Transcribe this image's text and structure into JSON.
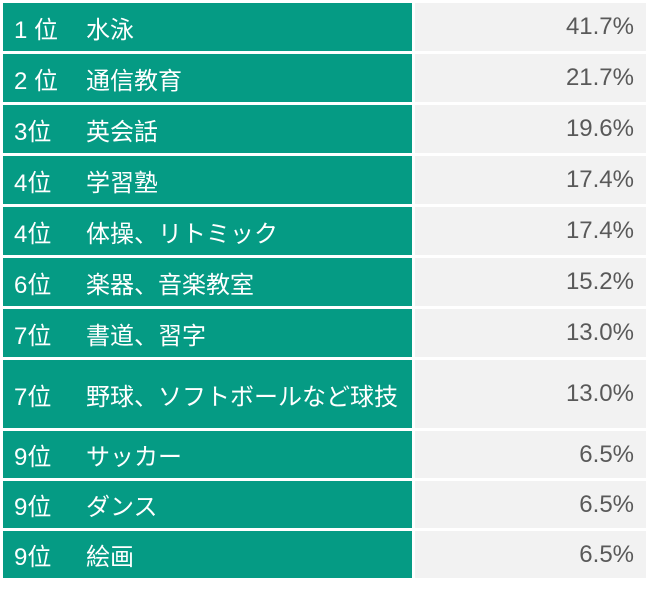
{
  "table": {
    "rows": [
      {
        "rank": "1 位",
        "name": "水泳",
        "value": "41.7%"
      },
      {
        "rank": "2 位",
        "name": "通信教育",
        "value": "21.7%"
      },
      {
        "rank": "3位",
        "name": "英会話",
        "value": "19.6%"
      },
      {
        "rank": "4位",
        "name": "学習塾",
        "value": "17.4%"
      },
      {
        "rank": "4位",
        "name": "体操、リトミック",
        "value": "17.4%"
      },
      {
        "rank": "6位",
        "name": "楽器、音楽教室",
        "value": "15.2%"
      },
      {
        "rank": "7位",
        "name": "書道、習字",
        "value": "13.0%"
      },
      {
        "rank": "7位",
        "name": "野球、ソフトボールなど球技",
        "value": "13.0%"
      },
      {
        "rank": "9位",
        "name": "サッカー",
        "value": "6.5%"
      },
      {
        "rank": "9位",
        "name": "ダンス",
        "value": "6.5%"
      },
      {
        "rank": "9位",
        "name": "絵画",
        "value": "6.5%"
      }
    ]
  },
  "colors": {
    "rank_cell_bg": "#059B84",
    "rank_cell_text": "#FFFFFF",
    "value_cell_bg": "#F2F2F2",
    "value_cell_text": "#595959",
    "gap": "#FFFFFF"
  },
  "chart_data": {
    "type": "table",
    "categories": [
      "水泳",
      "通信教育",
      "英会話",
      "学習塾",
      "体操、リトミック",
      "楽器、音楽教室",
      "書道、習字",
      "野球、ソフトボールなど球技",
      "サッカー",
      "ダンス",
      "絵画"
    ],
    "ranks": [
      1,
      2,
      3,
      4,
      4,
      6,
      7,
      7,
      9,
      9,
      9
    ],
    "values": [
      41.7,
      21.7,
      19.6,
      17.4,
      17.4,
      15.2,
      13.0,
      13.0,
      6.5,
      6.5,
      6.5
    ],
    "unit": "%"
  }
}
